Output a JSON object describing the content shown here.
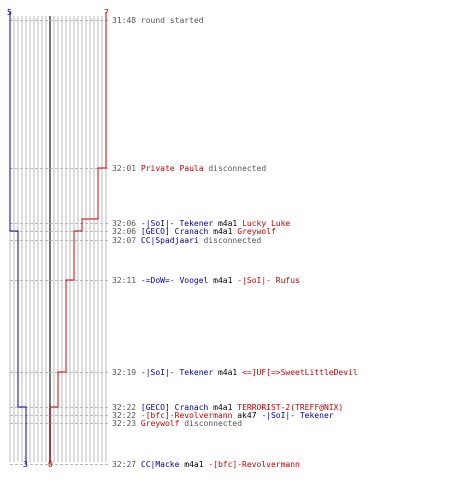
{
  "score_top": {
    "blue": "5",
    "red": "7"
  },
  "score_bottom": {
    "blue": "3",
    "red": "0"
  },
  "colors": {
    "blue": "#0000aa",
    "red": "#cc0000",
    "grid": "#bbbbbb",
    "dash": "#bbbbbb",
    "time": "#555555"
  },
  "events": [
    {
      "time": "31:48",
      "parts": [
        {
          "text": "round started",
          "cls": "gray"
        }
      ]
    },
    {
      "time": "32:01",
      "parts": [
        {
          "text": "Private Paula",
          "cls": "team-red"
        },
        {
          "text": " disconnected",
          "cls": "gray"
        }
      ]
    },
    {
      "time": "32:06",
      "parts": [
        {
          "text": "-|SoI|- Tekener",
          "cls": "team-blue"
        },
        {
          "text": " m4a1 ",
          "cls": "plain"
        },
        {
          "text": "Lucky Luke",
          "cls": "team-red"
        }
      ]
    },
    {
      "time": "32:06",
      "parts": [
        {
          "text": "[GECO] Cranach",
          "cls": "team-blue"
        },
        {
          "text": " m4a1 ",
          "cls": "plain"
        },
        {
          "text": "Greywolf",
          "cls": "team-red"
        }
      ]
    },
    {
      "time": "32:07",
      "parts": [
        {
          "text": "CC|Spadjaari",
          "cls": "team-blue"
        },
        {
          "text": " disconnected",
          "cls": "gray"
        }
      ]
    },
    {
      "time": "32:11",
      "parts": [
        {
          "text": "-=DoW=- Voogel",
          "cls": "team-blue"
        },
        {
          "text": " m4a1 ",
          "cls": "plain"
        },
        {
          "text": "-|SoI|- Rufus",
          "cls": "team-red"
        }
      ]
    },
    {
      "time": "32:19",
      "parts": [
        {
          "text": "-|SoI|- Tekener",
          "cls": "team-blue"
        },
        {
          "text": " m4a1 ",
          "cls": "plain"
        },
        {
          "text": "<=]UF[=>SweetLittleDevil",
          "cls": "team-red"
        }
      ]
    },
    {
      "time": "32:22",
      "parts": [
        {
          "text": "[GECO] Cranach",
          "cls": "team-blue"
        },
        {
          "text": " m4a1 ",
          "cls": "plain"
        },
        {
          "text": "TERRORIST-2(TREFF@NIX)",
          "cls": "team-red"
        }
      ]
    },
    {
      "time": "32:22",
      "parts": [
        {
          "text": "-[bfc]-Revolvermann",
          "cls": "team-red"
        },
        {
          "text": " ak47 ",
          "cls": "plain"
        },
        {
          "text": "-|SoI|- Tekener",
          "cls": "team-blue"
        }
      ]
    },
    {
      "time": "32:23",
      "parts": [
        {
          "text": "Greywolf",
          "cls": "team-red"
        },
        {
          "text": " disconnected",
          "cls": "gray"
        }
      ]
    },
    {
      "time": "32:27",
      "parts": [
        {
          "text": "CC|Macke",
          "cls": "team-blue"
        },
        {
          "text": " m4a1 ",
          "cls": "plain"
        },
        {
          "text": "-[bfc]-Revolvermann",
          "cls": "team-red"
        }
      ]
    }
  ]
}
